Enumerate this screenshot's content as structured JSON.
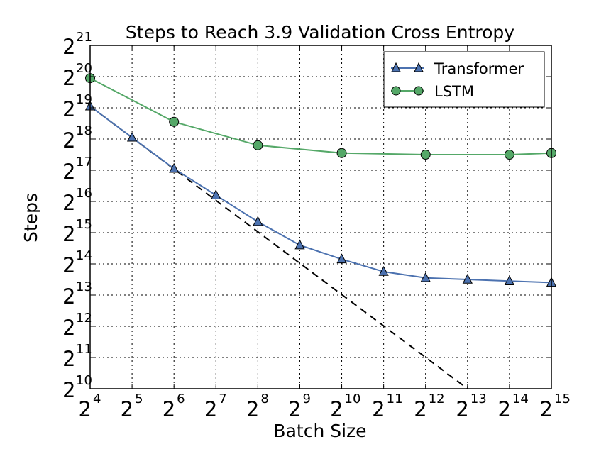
{
  "chart_data": {
    "type": "line",
    "title": "Steps to Reach 3.9 Validation Cross Entropy",
    "xlabel": "Batch Size",
    "ylabel": "Steps",
    "xscale": "log2",
    "yscale": "log2",
    "xlim_exp": [
      4,
      15
    ],
    "ylim_exp": [
      10,
      21
    ],
    "x_ticks": [
      {
        "base": "2",
        "exp": "4"
      },
      {
        "base": "2",
        "exp": "5"
      },
      {
        "base": "2",
        "exp": "6"
      },
      {
        "base": "2",
        "exp": "7"
      },
      {
        "base": "2",
        "exp": "8"
      },
      {
        "base": "2",
        "exp": "9"
      },
      {
        "base": "2",
        "exp": "10"
      },
      {
        "base": "2",
        "exp": "11"
      },
      {
        "base": "2",
        "exp": "12"
      },
      {
        "base": "2",
        "exp": "13"
      },
      {
        "base": "2",
        "exp": "14"
      },
      {
        "base": "2",
        "exp": "15"
      }
    ],
    "y_ticks": [
      {
        "base": "2",
        "exp": "10"
      },
      {
        "base": "2",
        "exp": "11"
      },
      {
        "base": "2",
        "exp": "12"
      },
      {
        "base": "2",
        "exp": "13"
      },
      {
        "base": "2",
        "exp": "14"
      },
      {
        "base": "2",
        "exp": "15"
      },
      {
        "base": "2",
        "exp": "16"
      },
      {
        "base": "2",
        "exp": "17"
      },
      {
        "base": "2",
        "exp": "18"
      },
      {
        "base": "2",
        "exp": "19"
      },
      {
        "base": "2",
        "exp": "20"
      },
      {
        "base": "2",
        "exp": "21"
      }
    ],
    "grid": true,
    "legend_position": "top-right",
    "series": [
      {
        "name": "Transformer",
        "marker": "triangle",
        "color": "#4c72b0",
        "x_exp": [
          4,
          5,
          6,
          7,
          8,
          9,
          10,
          11,
          12,
          13,
          14,
          15
        ],
        "y_exp": [
          19.05,
          18.05,
          17.05,
          16.2,
          15.35,
          14.6,
          14.15,
          13.75,
          13.55,
          13.5,
          13.45,
          13.4
        ]
      },
      {
        "name": "LSTM",
        "marker": "circle",
        "color": "#55a868",
        "x_exp": [
          4,
          6,
          8,
          10,
          12,
          14,
          15
        ],
        "y_exp": [
          19.95,
          18.55,
          17.8,
          17.55,
          17.5,
          17.5,
          17.55
        ]
      }
    ],
    "reference_line": {
      "style": "dashed",
      "color": "#000000",
      "x_exp": [
        4,
        13
      ],
      "y_exp": [
        19.05,
        10.0
      ]
    }
  }
}
